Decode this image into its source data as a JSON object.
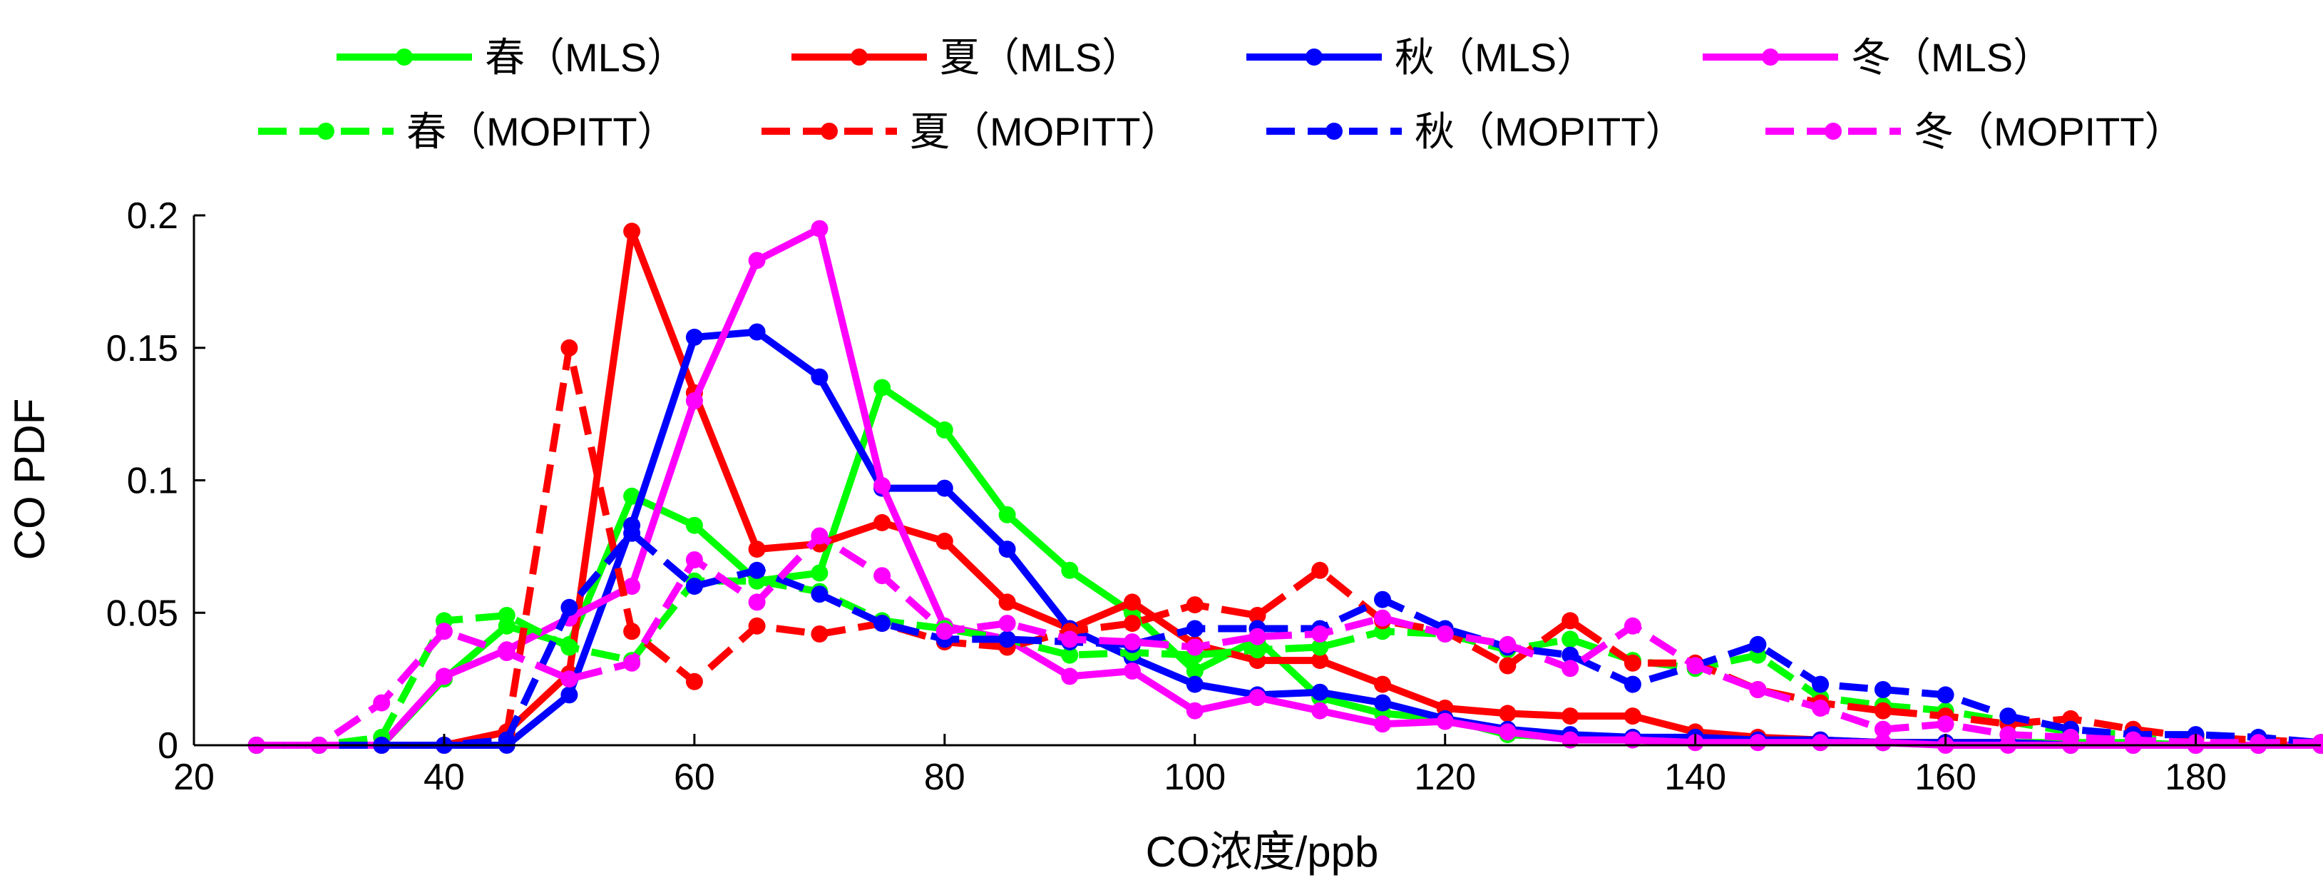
{
  "chart_data": {
    "type": "line",
    "xlabel": "CO浓度/ppb",
    "ylabel": "CO PDF",
    "xlim": [
      20,
      190
    ],
    "ylim": [
      0,
      0.2
    ],
    "xticks": [
      "20",
      "40",
      "60",
      "80",
      "100",
      "120",
      "140",
      "160",
      "180"
    ],
    "yticks": [
      "0",
      "0.05",
      "0.1",
      "0.15",
      "0.2"
    ],
    "grid": false,
    "legend_position": "top",
    "x": [
      25,
      30,
      35,
      40,
      45,
      50,
      55,
      60,
      65,
      70,
      75,
      80,
      85,
      90,
      95,
      100,
      105,
      110,
      115,
      120,
      125,
      130,
      135,
      140,
      145,
      150,
      155,
      160,
      165,
      170,
      175,
      180,
      185,
      190
    ],
    "series": [
      {
        "name": "春（MLS）",
        "color": "#00ff00",
        "dash": "solid",
        "values": [
          0,
          0,
          0,
          0.025,
          0.045,
          0.038,
          0.094,
          0.083,
          0.062,
          0.065,
          0.135,
          0.119,
          0.087,
          0.066,
          0.05,
          0.028,
          0.04,
          0.018,
          0.012,
          0.01,
          0.004,
          0.003,
          0.003,
          0.002,
          0.002,
          0.001,
          0.001,
          0.001,
          0.001,
          0.001,
          0.001,
          0,
          0,
          0
        ]
      },
      {
        "name": "夏（MLS）",
        "color": "#ff0000",
        "dash": "solid",
        "values": [
          0,
          0,
          0,
          0,
          0.005,
          0.027,
          0.194,
          0.133,
          0.074,
          0.076,
          0.084,
          0.077,
          0.054,
          0.044,
          0.054,
          0.038,
          0.032,
          0.032,
          0.023,
          0.014,
          0.012,
          0.011,
          0.011,
          0.005,
          0.003,
          0.002,
          0.001,
          0.001,
          0.001,
          0,
          0,
          0,
          0,
          0
        ]
      },
      {
        "name": "秋（MLS）",
        "color": "#0000ff",
        "dash": "solid",
        "values": [
          0,
          0,
          0,
          0,
          0,
          0.019,
          0.083,
          0.154,
          0.156,
          0.139,
          0.097,
          0.097,
          0.074,
          0.044,
          0.033,
          0.023,
          0.019,
          0.02,
          0.016,
          0.01,
          0.006,
          0.004,
          0.003,
          0.003,
          0.002,
          0.002,
          0.001,
          0.001,
          0.001,
          0,
          0,
          0,
          0,
          0
        ]
      },
      {
        "name": "冬（MLS）",
        "color": "#ff00ff",
        "dash": "solid",
        "values": [
          0,
          0,
          0,
          0.026,
          0.036,
          0.048,
          0.06,
          0.13,
          0.183,
          0.195,
          0.098,
          0.045,
          0.04,
          0.026,
          0.028,
          0.013,
          0.018,
          0.013,
          0.008,
          0.009,
          0.005,
          0.002,
          0.002,
          0.001,
          0.001,
          0.001,
          0.001,
          0,
          0,
          0,
          0,
          0,
          0,
          0
        ]
      },
      {
        "name": "春（MOPITT）",
        "color": "#00ff00",
        "dash": "dashed",
        "values": [
          0,
          0,
          0.003,
          0.047,
          0.049,
          0.037,
          0.032,
          0.062,
          0.062,
          0.058,
          0.047,
          0.044,
          0.04,
          0.034,
          0.035,
          0.034,
          0.036,
          0.037,
          0.043,
          0.042,
          0.036,
          0.04,
          0.032,
          0.029,
          0.034,
          0.018,
          0.015,
          0.013,
          0.009,
          0.005,
          0.004,
          0.003,
          0.002,
          0.001
        ]
      },
      {
        "name": "夏（MOPITT）",
        "color": "#ff0000",
        "dash": "dashed",
        "values": [
          0,
          0,
          0,
          0,
          0.004,
          0.15,
          0.043,
          0.024,
          0.045,
          0.042,
          0.046,
          0.039,
          0.037,
          0.043,
          0.046,
          0.053,
          0.049,
          0.066,
          0.047,
          0.043,
          0.03,
          0.047,
          0.031,
          0.031,
          0.021,
          0.016,
          0.013,
          0.011,
          0.008,
          0.01,
          0.006,
          0.003,
          0.002,
          0.001
        ]
      },
      {
        "name": "秋（MOPITT）",
        "color": "#0000ff",
        "dash": "dashed",
        "values": [
          0,
          0,
          0,
          0,
          0.002,
          0.052,
          0.08,
          0.06,
          0.066,
          0.057,
          0.046,
          0.04,
          0.04,
          0.039,
          0.038,
          0.044,
          0.044,
          0.044,
          0.055,
          0.044,
          0.037,
          0.034,
          0.023,
          0.03,
          0.038,
          0.023,
          0.021,
          0.019,
          0.011,
          0.006,
          0.004,
          0.004,
          0.003,
          0.001
        ]
      },
      {
        "name": "冬（MOPITT）",
        "color": "#ff00ff",
        "dash": "dashed",
        "values": [
          0,
          0,
          0.016,
          0.043,
          0.035,
          0.025,
          0.031,
          0.07,
          0.054,
          0.079,
          0.064,
          0.043,
          0.046,
          0.04,
          0.039,
          0.037,
          0.041,
          0.042,
          0.048,
          0.042,
          0.038,
          0.029,
          0.045,
          0.03,
          0.021,
          0.014,
          0.006,
          0.008,
          0.004,
          0.003,
          0.002,
          0.001,
          0.001,
          0.001
        ]
      }
    ]
  }
}
